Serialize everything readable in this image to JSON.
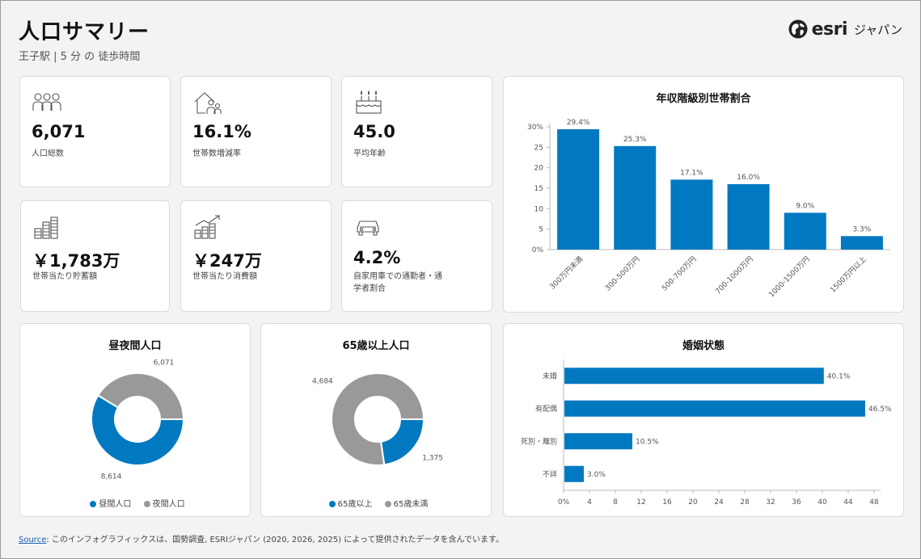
{
  "header": {
    "title": "人口サマリー",
    "subtitle": "王子駅 | 5 分 の 徒歩時間",
    "logo_text": "esri",
    "logo_suffix": "ジャパン"
  },
  "kpis": [
    {
      "value": "6,071",
      "label": "人口総数",
      "icon": "people-icon"
    },
    {
      "value": "16.1%",
      "label": "世帯数増減率",
      "icon": "household-icon"
    },
    {
      "value": "45.0",
      "label": "平均年齢",
      "icon": "birthday-cake-icon"
    },
    {
      "value": "￥1,783万",
      "label": "世帯当たり貯蓄額",
      "icon": "coin-stacks-icon"
    },
    {
      "value": "￥247万",
      "label": "世帯当たり消費額",
      "icon": "growth-coins-icon"
    },
    {
      "value": "4.2%",
      "label": "自家用車での通勤者・通学者割合",
      "icon": "car-icon"
    }
  ],
  "colors": {
    "blue": "#0079c1",
    "gray": "#999999"
  },
  "chart_data": [
    {
      "type": "bar",
      "title": "年収階級別世帯割合",
      "categories": [
        "300万円未満",
        "300-500万円",
        "500-700万円",
        "700-1000万円",
        "1000-1500万円",
        "1500万円以上"
      ],
      "values": [
        29.4,
        25.3,
        17.1,
        16.0,
        9.0,
        3.3
      ],
      "value_labels": [
        "29.4%",
        "25.3%",
        "17.1%",
        "16.0%",
        "9.0%",
        "3.3%"
      ],
      "ylim": [
        0,
        30
      ],
      "yticks": [
        "0%",
        "5",
        "10",
        "15",
        "20",
        "25",
        "30%"
      ]
    },
    {
      "type": "pie",
      "title": "昼夜間人口",
      "slices": [
        {
          "name": "昼間人口",
          "value": 8614,
          "label": "8,614",
          "color": "#0079c1"
        },
        {
          "name": "夜間人口",
          "value": 6071,
          "label": "6,071",
          "color": "#999999"
        }
      ]
    },
    {
      "type": "pie",
      "title": "65歳以上人口",
      "slices": [
        {
          "name": "65歳以上",
          "value": 1375,
          "label": "1,375",
          "color": "#0079c1"
        },
        {
          "name": "65歳未満",
          "value": 4684,
          "label": "4,684",
          "color": "#999999"
        }
      ]
    },
    {
      "type": "bar",
      "orientation": "horizontal",
      "title": "婚姻状態",
      "categories": [
        "未婚",
        "有配偶",
        "死別・離別",
        "不詳"
      ],
      "values": [
        40.1,
        46.5,
        10.5,
        3.0
      ],
      "value_labels": [
        "40.1%",
        "46.5%",
        "10.5%",
        "3.0%"
      ],
      "xlim": [
        0,
        48
      ],
      "xticks": [
        "0%",
        "4",
        "8",
        "12",
        "16",
        "20",
        "24",
        "28",
        "32",
        "36",
        "40",
        "44",
        "48"
      ]
    }
  ],
  "footer": {
    "source_link": "Source",
    "source_text": ": このインフォグラフィックスは、国勢調査, ESRIジャパン (2020, 2026, 2025) によって提供されたデータを含んでいます。"
  }
}
